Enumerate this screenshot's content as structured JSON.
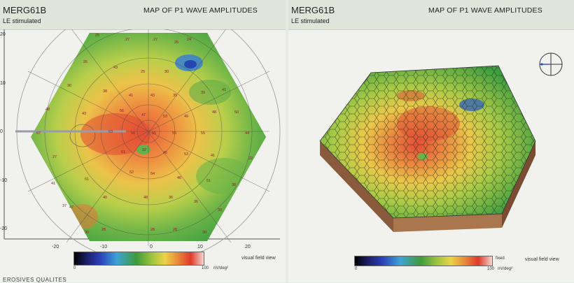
{
  "left": {
    "patient_id": "MERG61B",
    "stimulation": "LE stimulated",
    "title": "MAP OF P1 WAVE AMPLITUDES",
    "x_ticks": [
      "-20",
      "-10",
      "0",
      "10",
      "20"
    ],
    "y_ticks": [
      "20",
      "10",
      "0",
      "-10",
      "-20"
    ],
    "view_label": "visual field view",
    "colorbar": {
      "min": "0",
      "max": "100",
      "unit": "nV/deg²"
    },
    "hexagon_values": [
      "25",
      "27",
      "27",
      "26",
      "24",
      "26",
      "43",
      "25",
      "30",
      "30",
      "38",
      "41",
      "43",
      "35",
      "39",
      "41",
      "48",
      "43",
      "56",
      "47",
      "53",
      "49",
      "48",
      "50",
      "67",
      "63",
      "56",
      "55",
      "55",
      "55",
      "44",
      "27",
      "61",
      "32",
      "45",
      "53",
      "41",
      "22",
      "51",
      "52",
      "54",
      "46",
      "51",
      "38",
      "41",
      "47",
      "40",
      "48",
      "36",
      "36",
      "30",
      "37",
      "30",
      "28",
      "28",
      "28",
      "30"
    ]
  },
  "right": {
    "patient_id": "MERG61B",
    "stimulation": "LE stimulated",
    "title": "MAP OF P1 WAVE AMPLITUDES",
    "view_label": "visual field view",
    "fixed_label": "fixed",
    "colorbar": {
      "min": "0",
      "max": "100",
      "unit": "nV/deg²"
    }
  },
  "colors": {
    "low": "#2a3fb8",
    "mid": "#3f9a3a",
    "high": "#e24a2a",
    "peak": "#f3d6cf"
  },
  "footer": "EROSIVES QUALITES"
}
